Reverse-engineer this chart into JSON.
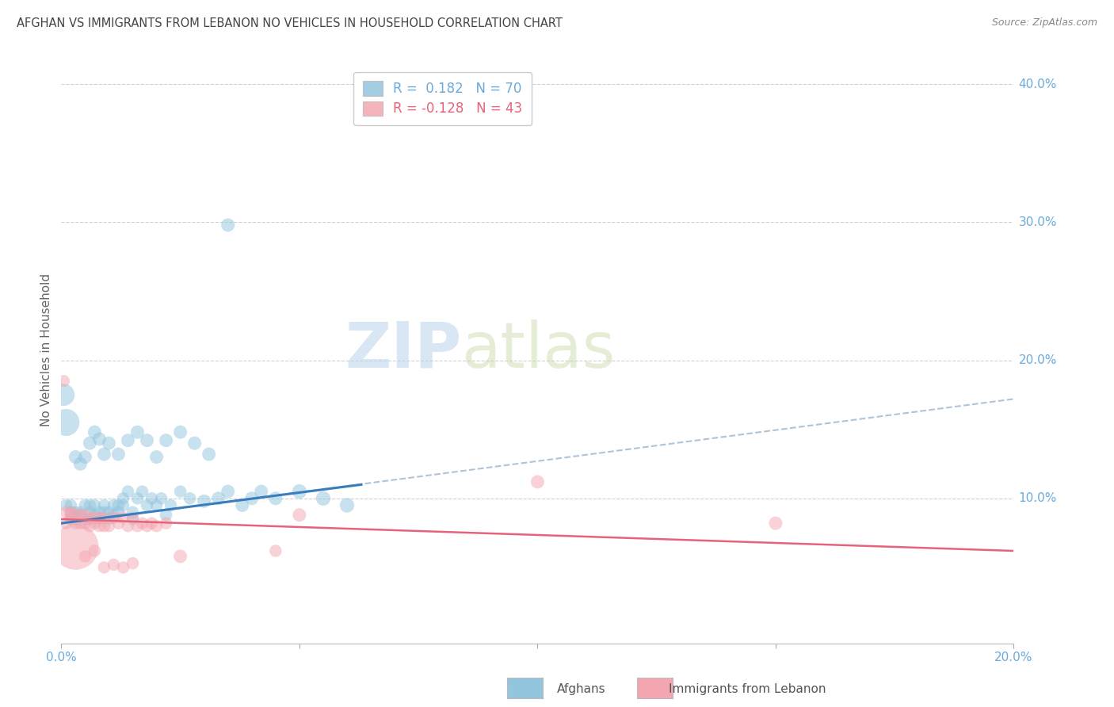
{
  "title": "AFGHAN VS IMMIGRANTS FROM LEBANON NO VEHICLES IN HOUSEHOLD CORRELATION CHART",
  "source": "Source: ZipAtlas.com",
  "ylabel": "No Vehicles in Household",
  "xlim": [
    0.0,
    0.2
  ],
  "ylim": [
    -0.005,
    0.42
  ],
  "xticks": [
    0.0,
    0.05,
    0.1,
    0.15,
    0.2
  ],
  "xtick_labels": [
    "0.0%",
    "",
    "",
    "",
    "20.0%"
  ],
  "ytick_labels_right": [
    "10.0%",
    "20.0%",
    "30.0%",
    "40.0%"
  ],
  "ytick_vals_right": [
    0.1,
    0.2,
    0.3,
    0.4
  ],
  "watermark_zip": "ZIP",
  "watermark_atlas": "atlas",
  "legend_blue_r": "0.182",
  "legend_blue_n": "70",
  "legend_pink_r": "-0.128",
  "legend_pink_n": "43",
  "blue_color": "#92c5de",
  "pink_color": "#f4a6b0",
  "blue_line_color": "#3a7dbf",
  "pink_line_color": "#e8637a",
  "dashed_line_color": "#b0c4d8",
  "grid_color": "#d0d0d0",
  "title_color": "#444444",
  "axis_label_color": "#6aabdc",
  "background_color": "#ffffff",
  "blue_line_x": [
    0.0,
    0.063
  ],
  "blue_line_y": [
    0.082,
    0.11
  ],
  "dashed_line_x": [
    0.0,
    0.2
  ],
  "dashed_line_y": [
    0.082,
    0.172
  ],
  "pink_line_x": [
    0.0,
    0.2
  ],
  "pink_line_y": [
    0.085,
    0.062
  ],
  "afghans_x": [
    0.0005,
    0.001,
    0.001,
    0.002,
    0.002,
    0.002,
    0.003,
    0.003,
    0.004,
    0.004,
    0.005,
    0.005,
    0.006,
    0.006,
    0.006,
    0.007,
    0.007,
    0.008,
    0.008,
    0.009,
    0.009,
    0.01,
    0.01,
    0.011,
    0.011,
    0.012,
    0.012,
    0.013,
    0.013,
    0.014,
    0.015,
    0.015,
    0.016,
    0.017,
    0.018,
    0.019,
    0.02,
    0.021,
    0.022,
    0.023,
    0.025,
    0.027,
    0.03,
    0.033,
    0.035,
    0.038,
    0.04,
    0.042,
    0.045,
    0.05,
    0.055,
    0.06,
    0.003,
    0.004,
    0.005,
    0.006,
    0.007,
    0.008,
    0.009,
    0.01,
    0.012,
    0.014,
    0.016,
    0.018,
    0.02,
    0.022,
    0.025,
    0.028,
    0.031,
    0.035
  ],
  "afghans_y": [
    0.175,
    0.155,
    0.095,
    0.09,
    0.095,
    0.085,
    0.09,
    0.085,
    0.09,
    0.088,
    0.085,
    0.095,
    0.085,
    0.09,
    0.095,
    0.088,
    0.095,
    0.09,
    0.085,
    0.09,
    0.095,
    0.085,
    0.09,
    0.095,
    0.088,
    0.09,
    0.095,
    0.1,
    0.095,
    0.105,
    0.085,
    0.09,
    0.1,
    0.105,
    0.095,
    0.1,
    0.095,
    0.1,
    0.088,
    0.095,
    0.105,
    0.1,
    0.098,
    0.1,
    0.105,
    0.095,
    0.1,
    0.105,
    0.1,
    0.105,
    0.1,
    0.095,
    0.13,
    0.125,
    0.13,
    0.14,
    0.148,
    0.143,
    0.132,
    0.14,
    0.132,
    0.142,
    0.148,
    0.142,
    0.13,
    0.142,
    0.148,
    0.14,
    0.132,
    0.298
  ],
  "afghans_size": [
    80,
    120,
    25,
    25,
    25,
    25,
    25,
    25,
    25,
    25,
    25,
    25,
    25,
    25,
    25,
    25,
    25,
    25,
    25,
    25,
    25,
    25,
    25,
    25,
    25,
    25,
    25,
    25,
    25,
    25,
    25,
    25,
    25,
    25,
    25,
    25,
    25,
    25,
    25,
    25,
    25,
    25,
    30,
    30,
    30,
    30,
    30,
    30,
    30,
    35,
    35,
    35,
    30,
    30,
    30,
    30,
    30,
    30,
    30,
    30,
    30,
    30,
    30,
    30,
    30,
    30,
    30,
    30,
    30,
    30
  ],
  "lebanon_x": [
    0.0005,
    0.001,
    0.001,
    0.002,
    0.002,
    0.003,
    0.003,
    0.004,
    0.004,
    0.005,
    0.005,
    0.006,
    0.006,
    0.007,
    0.007,
    0.008,
    0.008,
    0.009,
    0.009,
    0.01,
    0.011,
    0.012,
    0.013,
    0.014,
    0.015,
    0.016,
    0.017,
    0.018,
    0.019,
    0.02,
    0.022,
    0.025,
    0.05,
    0.1,
    0.15,
    0.003,
    0.005,
    0.007,
    0.009,
    0.011,
    0.013,
    0.015,
    0.045
  ],
  "lebanon_y": [
    0.185,
    0.09,
    0.082,
    0.088,
    0.09,
    0.082,
    0.088,
    0.082,
    0.088,
    0.082,
    0.088,
    0.08,
    0.086,
    0.082,
    0.086,
    0.08,
    0.086,
    0.08,
    0.086,
    0.08,
    0.086,
    0.082,
    0.086,
    0.08,
    0.086,
    0.08,
    0.082,
    0.08,
    0.082,
    0.08,
    0.082,
    0.058,
    0.088,
    0.112,
    0.082,
    0.065,
    0.058,
    0.062,
    0.05,
    0.052,
    0.05,
    0.053,
    0.062
  ],
  "lebanon_size": [
    25,
    25,
    25,
    25,
    25,
    25,
    25,
    25,
    25,
    25,
    25,
    25,
    25,
    25,
    25,
    25,
    25,
    25,
    25,
    25,
    25,
    25,
    25,
    25,
    25,
    25,
    25,
    25,
    25,
    25,
    25,
    30,
    30,
    30,
    30,
    350,
    25,
    25,
    25,
    25,
    25,
    25,
    25
  ]
}
